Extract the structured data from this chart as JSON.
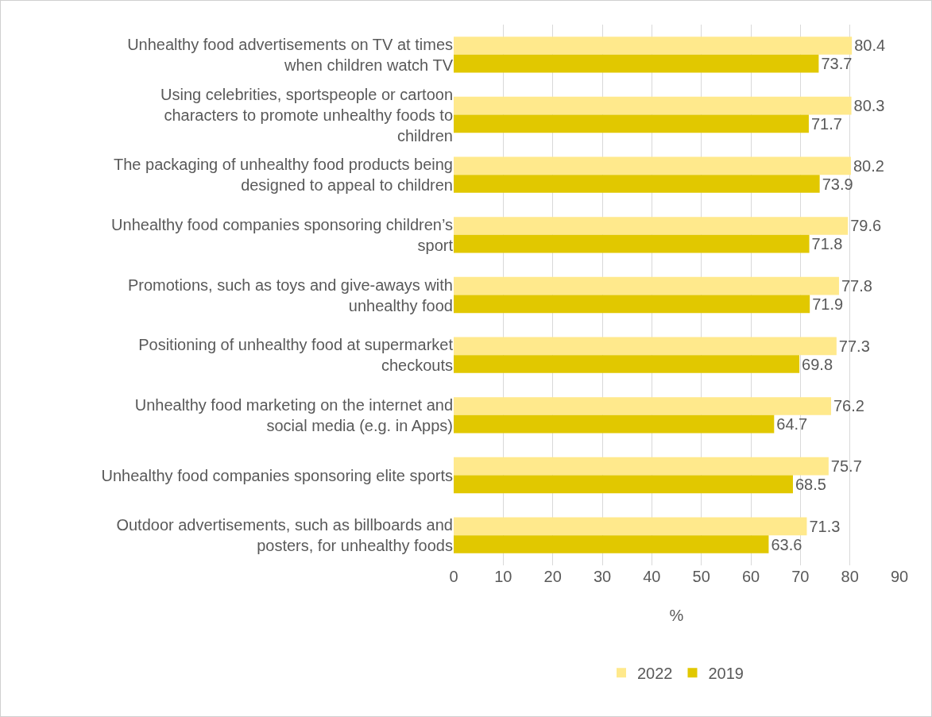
{
  "chart_data": {
    "type": "bar",
    "orientation": "horizontal",
    "xlabel": "%",
    "categories": [
      "Unhealthy food advertisements on TV at times when children watch TV",
      "Using celebrities, sportspeople or cartoon characters to promote unhealthy foods to children",
      "The packaging of unhealthy food products being designed to appeal to children",
      "Unhealthy food companies sponsoring children’s sport",
      "Promotions, such as toys and give-aways with unhealthy food",
      "Positioning of unhealthy food at supermarket checkouts",
      "Unhealthy food marketing on the internet and social media (e.g. in Apps)",
      "Unhealthy food companies sponsoring elite sports",
      "Outdoor advertisements, such as billboards and posters, for unhealthy foods"
    ],
    "series": [
      {
        "name": "2022",
        "color": "#ffe98c",
        "values": [
          80.4,
          80.3,
          80.2,
          79.6,
          77.8,
          77.3,
          76.2,
          75.7,
          71.3
        ]
      },
      {
        "name": "2019",
        "color": "#e1c800",
        "values": [
          73.7,
          71.7,
          73.9,
          71.8,
          71.9,
          69.8,
          64.7,
          68.5,
          63.6
        ]
      }
    ],
    "xlim": [
      0,
      90
    ],
    "xticks": [
      0,
      10,
      20,
      30,
      40,
      50,
      60,
      70,
      80,
      90
    ],
    "grid": "x",
    "legend": "bottom",
    "data_labels": true
  }
}
